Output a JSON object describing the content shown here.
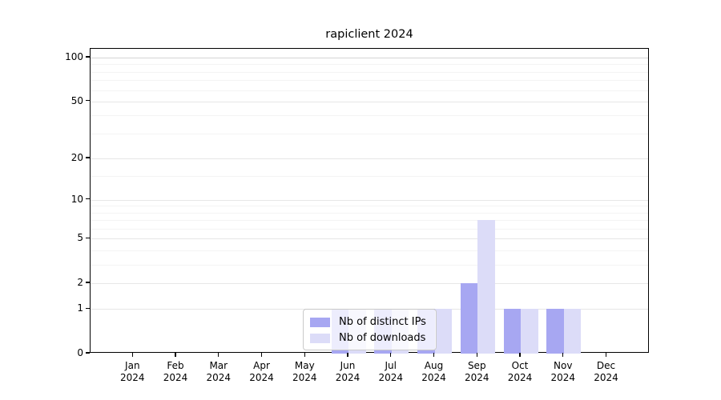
{
  "chart_data": {
    "type": "bar",
    "title": "rapiclient 2024",
    "x_tick_months": [
      "Jan",
      "Feb",
      "Mar",
      "Apr",
      "May",
      "Jun",
      "Jul",
      "Aug",
      "Sep",
      "Oct",
      "Nov",
      "Dec"
    ],
    "x_tick_year": "2024",
    "series": [
      {
        "name": "Nb of distinct IPs",
        "color": "#a7a7f2",
        "values": [
          0,
          0,
          0,
          0,
          0,
          1,
          1,
          1,
          2,
          1,
          1,
          0
        ]
      },
      {
        "name": "Nb of downloads",
        "color": "#dcdcf8",
        "values": [
          0,
          0,
          0,
          0,
          0,
          1,
          1,
          1,
          7,
          1,
          1,
          0
        ]
      }
    ],
    "y_ticks": [
      0,
      1,
      2,
      5,
      10,
      20,
      50,
      100
    ],
    "y_minor_gridlines": [
      3,
      4,
      6,
      7,
      8,
      9,
      15,
      30,
      40,
      60,
      70,
      80,
      90
    ],
    "y_scale": "log1p",
    "ylim": [
      0,
      115
    ],
    "grid": true,
    "legend_position": "bottom-center",
    "colors": {
      "axis": "#000000",
      "grid_major": "#e7e7e7",
      "grid_minor": "#f4f4f4",
      "grid_top": "#d4d4d4"
    }
  }
}
